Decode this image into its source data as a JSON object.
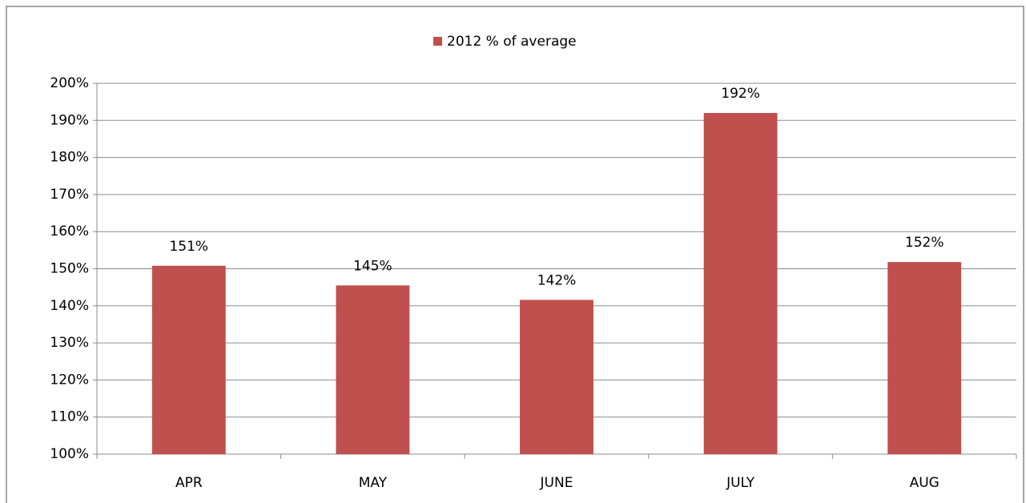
{
  "chart_data": {
    "type": "bar",
    "categories": [
      "APR",
      "MAY",
      "JUNE",
      "JULY",
      "AUG"
    ],
    "series": [
      {
        "name": "2012 % of average",
        "color": "#c0504d",
        "values": [
          150.8,
          145.5,
          141.6,
          192.0,
          151.8
        ],
        "value_labels": [
          "151%",
          "145%",
          "142%",
          "192%",
          "152%"
        ]
      }
    ],
    "ylim": [
      100,
      200
    ],
    "yticks": [
      {
        "value": 100,
        "label": "100%"
      },
      {
        "value": 110,
        "label": "110%"
      },
      {
        "value": 120,
        "label": "120%"
      },
      {
        "value": 130,
        "label": "130%"
      },
      {
        "value": 140,
        "label": "140%"
      },
      {
        "value": 150,
        "label": "150%"
      },
      {
        "value": 160,
        "label": "160%"
      },
      {
        "value": 170,
        "label": "170%"
      },
      {
        "value": 180,
        "label": "180%"
      },
      {
        "value": 190,
        "label": "190%"
      },
      {
        "value": 200,
        "label": "200%"
      }
    ],
    "grid": true,
    "legend": "top"
  }
}
